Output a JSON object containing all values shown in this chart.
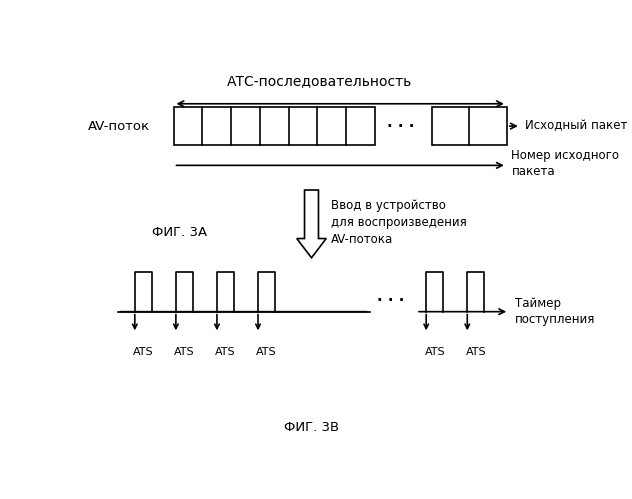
{
  "title_atc": "АТС-последовательность",
  "label_av": "AV-поток",
  "label_source_packet": "Исходный пакет",
  "label_source_number": "Номер исходного\nпакета",
  "label_input": "Ввод в устройство\nдля воспроизведения\nAV-потока",
  "label_fig3a": "ФИГ. 3А",
  "label_fig3b": "ФИГ. 3В",
  "label_timer": "Таймер\nпоступления",
  "label_ats": "ATS",
  "bg_color": "#ffffff",
  "line_color": "#000000",
  "fig_width": 6.32,
  "fig_height": 4.99,
  "dpi": 100
}
